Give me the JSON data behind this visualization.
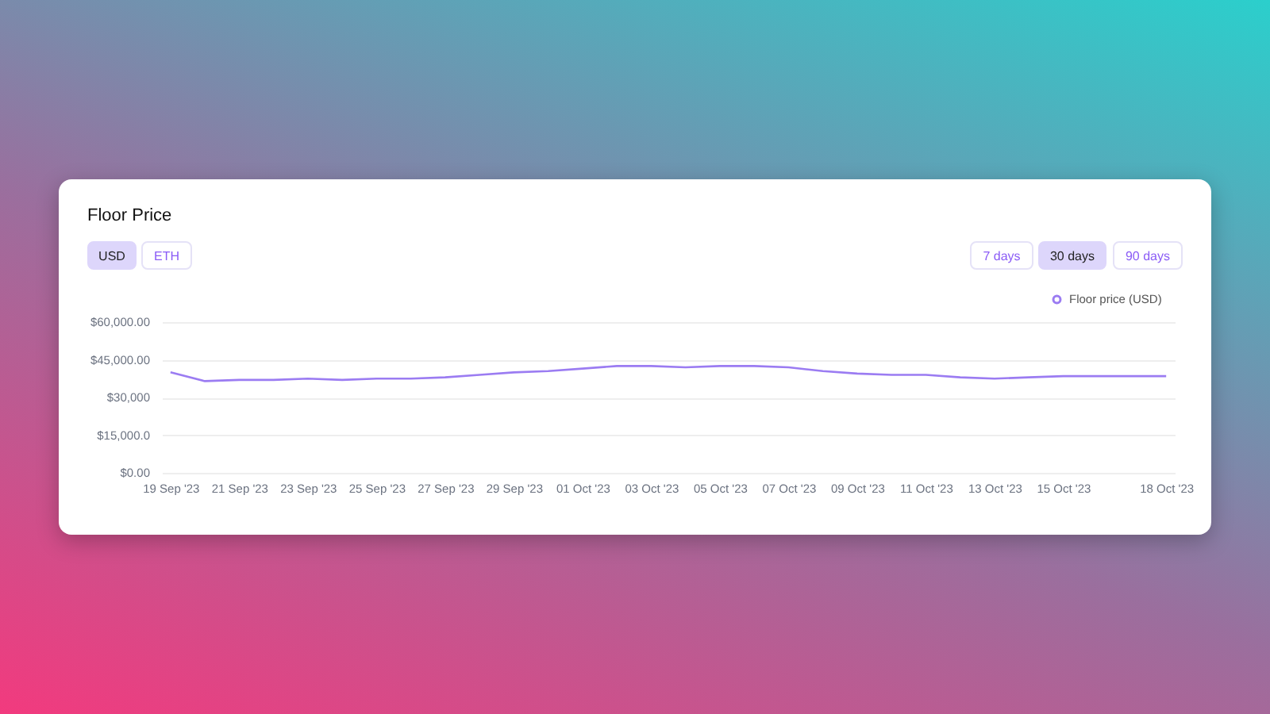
{
  "chart_data": {
    "type": "line",
    "title": "Floor Price",
    "annotations": [
      "USD",
      "ETH",
      "7 days",
      "30 days",
      "90 days"
    ],
    "categories": [
      "19 Sep '23",
      null,
      "21 Sep '23",
      null,
      "23 Sep '23",
      null,
      "25 Sep '23",
      null,
      "27 Sep '23",
      null,
      "29 Sep '23",
      null,
      "01 Oct '23",
      null,
      "03 Oct '23",
      null,
      "05 Oct '23",
      null,
      "07 Oct '23",
      null,
      "09 Oct '23",
      null,
      "11 Oct '23",
      null,
      "13 Oct '23",
      null,
      "15 Oct '23",
      null,
      null,
      "18 Oct '23"
    ],
    "series": [
      {
        "name": "Floor price (USD)",
        "color": "#9b7cf2",
        "values": [
          40000,
          36500,
          37000,
          37000,
          37500,
          37000,
          37500,
          37500,
          38000,
          39000,
          40000,
          40500,
          41500,
          42500,
          42500,
          42000,
          42500,
          42500,
          42000,
          40500,
          39500,
          39000,
          39000,
          38000,
          37500,
          38000,
          38500,
          38500,
          38500,
          38500
        ]
      }
    ],
    "ylim": [
      0,
      60000
    ],
    "yticks": [
      {
        "value": 0,
        "label": "$0.00"
      },
      {
        "value": 15000,
        "label": "$15,000.0"
      },
      {
        "value": 30000,
        "label": "$30,000"
      },
      {
        "value": 45000,
        "label": "$45,000.00"
      },
      {
        "value": 60000,
        "label": "$60,000.00"
      }
    ],
    "grid": "y",
    "legend": "top right",
    "marker": "none",
    "line_style": "solid"
  }
}
